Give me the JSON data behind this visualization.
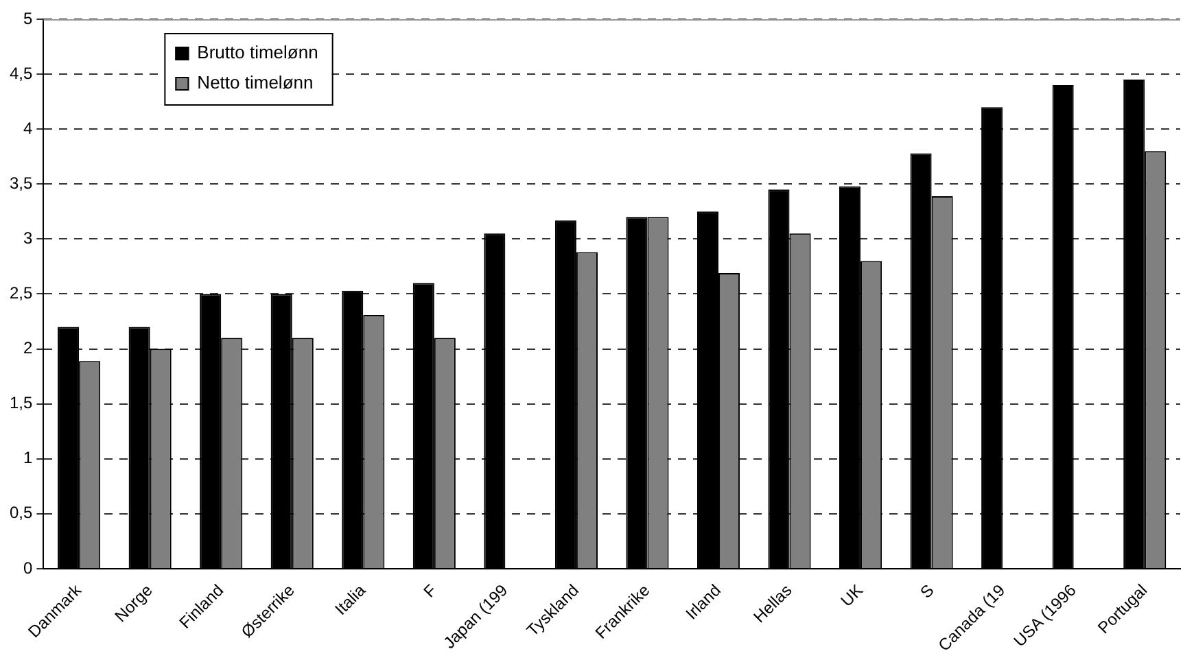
{
  "chart_data": {
    "type": "bar",
    "categories": [
      "Danmark",
      "Norge",
      "Finland",
      "Østerrike",
      "Italia",
      "F",
      "Japan (199",
      "Tyskland",
      "Frankrike",
      "Irland",
      "Hellas",
      "UK",
      "S",
      "Canada (19",
      "USA (1996",
      "Portugal"
    ],
    "series": [
      {
        "name": "Brutto timelønn",
        "color": "#000000",
        "values": [
          2.2,
          2.2,
          2.5,
          2.5,
          2.53,
          2.6,
          3.05,
          3.17,
          3.2,
          3.25,
          3.45,
          3.48,
          3.78,
          4.2,
          4.4,
          4.45
        ]
      },
      {
        "name": "Netto timelønn",
        "color": "#808080",
        "values": [
          1.89,
          2.0,
          2.1,
          2.1,
          2.31,
          2.1,
          null,
          2.88,
          3.2,
          2.69,
          3.05,
          2.8,
          3.39,
          null,
          null,
          3.8
        ]
      }
    ],
    "ylim": [
      0,
      5
    ],
    "yticks": [
      0,
      {
        "value": 0.5,
        "label": "0,5"
      },
      1,
      {
        "value": 1.5,
        "label": "1,5"
      },
      2,
      {
        "value": 2.5,
        "label": "2,5"
      },
      3,
      {
        "value": 3.5,
        "label": "3,5"
      },
      4,
      {
        "value": 4.5,
        "label": "4,5"
      },
      5
    ],
    "grid": "y",
    "legend": "top left",
    "line_style": "dashed"
  }
}
